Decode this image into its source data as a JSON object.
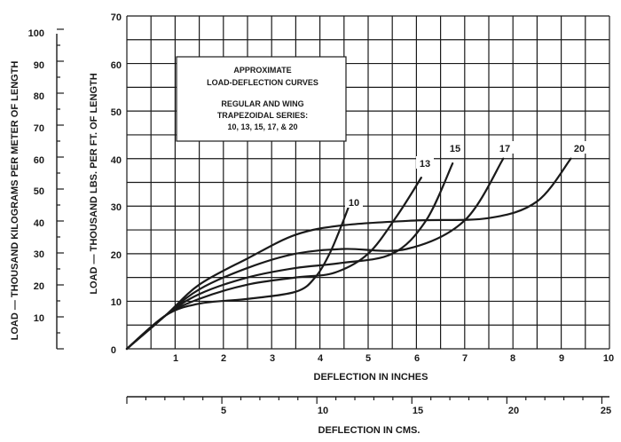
{
  "chart_data": {
    "type": "line",
    "title": "APPROXIMATE LOAD-DEFLECTION CURVES",
    "subtitle": "REGULAR AND WING TRAPEZOIDAL SERIES: 10, 13, 15, 17, & 20",
    "title_lines": [
      "APPROXIMATE",
      "LOAD-DEFLECTION CURVES"
    ],
    "subtitle_lines": [
      "REGULAR AND WING",
      "TRAPEZOIDAL SERIES:",
      "10, 13, 15, 17, & 20"
    ],
    "xlabel": "DEFLECTION IN INCHES",
    "ylabel": "LOAD — THOUSAND LBS. PER FT. OF LENGTH",
    "xlim": [
      0,
      10
    ],
    "ylim": [
      0,
      70
    ],
    "x_ticks": [
      "1",
      "2",
      "3",
      "4",
      "5",
      "6",
      "7",
      "8",
      "9",
      "10"
    ],
    "y_ticks": [
      "0",
      "10",
      "20",
      "30",
      "40",
      "50",
      "60",
      "70"
    ],
    "grid": true,
    "secondary_x_axis": {
      "label": "DEFLECTION IN CMS.",
      "ticks": [
        "5",
        "10",
        "15",
        "20",
        "25"
      ],
      "values": [
        5,
        10,
        15,
        20,
        25
      ]
    },
    "secondary_y_axis": {
      "label": "LOAD — THOUSAND KILOGRAMS PER METER OF LENGTH",
      "ticks": [
        "10",
        "20",
        "30",
        "40",
        "50",
        "60",
        "70",
        "80",
        "90",
        "100"
      ],
      "values": [
        10,
        20,
        30,
        40,
        50,
        60,
        70,
        80,
        90,
        100
      ]
    },
    "series": [
      {
        "name": "10",
        "x": [
          0,
          0.8,
          1.5,
          2.5,
          3.5,
          3.9,
          4.2,
          4.45,
          4.6
        ],
        "y": [
          0,
          7,
          9.5,
          10.5,
          12,
          15,
          20,
          26,
          30
        ]
      },
      {
        "name": "13",
        "x": [
          0,
          0.8,
          1.5,
          2.5,
          3.5,
          4.3,
          5.0,
          5.6,
          6.1
        ],
        "y": [
          0,
          7,
          10.5,
          13.5,
          15,
          16,
          20,
          28,
          36
        ]
      },
      {
        "name": "15",
        "x": [
          0,
          0.8,
          1.5,
          2.5,
          3.5,
          4.4,
          5.5,
          6.2,
          6.75
        ],
        "y": [
          0,
          7,
          11.5,
          15,
          17,
          18,
          20,
          27,
          39
        ]
      },
      {
        "name": "17",
        "x": [
          0,
          0.8,
          1.5,
          2.5,
          3.5,
          4.5,
          5.8,
          7.0,
          7.8
        ],
        "y": [
          0,
          7,
          12.5,
          17,
          20,
          21,
          21,
          27,
          40
        ]
      },
      {
        "name": "20",
        "x": [
          0,
          0.8,
          1.5,
          2.5,
          3.5,
          4.5,
          6.0,
          7.5,
          8.5,
          9.2
        ],
        "y": [
          0,
          7,
          13.5,
          19,
          24,
          26,
          27,
          27.5,
          31,
          40
        ]
      }
    ],
    "curve_labels": [
      "10",
      "13",
      "15",
      "17",
      "20"
    ]
  }
}
